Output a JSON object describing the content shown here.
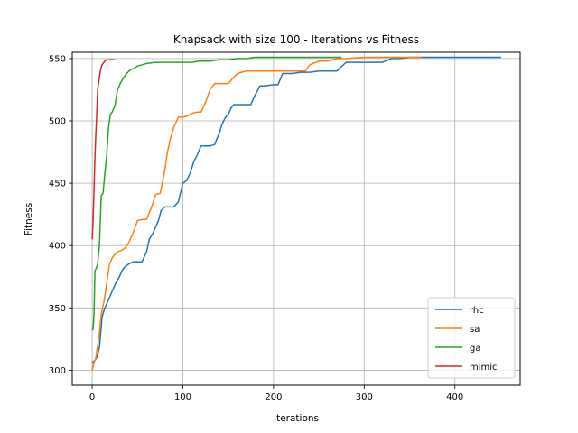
{
  "chart_data": {
    "type": "line",
    "title": "Knapsack with size 100 - Iterations vs Fitness",
    "xlabel": "Iterations",
    "ylabel": "Fitness",
    "xlim": [
      -22,
      472
    ],
    "ylim": [
      288,
      555
    ],
    "xticks": [
      0,
      100,
      200,
      300,
      400
    ],
    "yticks": [
      300,
      350,
      400,
      450,
      500,
      550
    ],
    "grid": true,
    "legend_position": "lower right",
    "series": [
      {
        "name": "rhc",
        "color": "#1f77b4",
        "x": [
          0,
          3,
          5,
          8,
          11,
          14,
          17,
          20,
          23,
          26,
          30,
          33,
          36,
          40,
          45,
          50,
          55,
          60,
          63,
          67,
          70,
          73,
          76,
          80,
          85,
          90,
          95,
          100,
          104,
          108,
          112,
          116,
          120,
          125,
          130,
          135,
          140,
          143,
          147,
          150,
          153,
          156,
          160,
          165,
          170,
          175,
          178,
          180,
          185,
          190,
          200,
          205,
          210,
          220,
          230,
          240,
          250,
          260,
          270,
          280,
          300,
          320,
          330,
          340,
          350,
          360,
          380,
          400,
          420,
          451
        ],
        "y": [
          306,
          308,
          310,
          318,
          343,
          350,
          355,
          360,
          365,
          370,
          375,
          380,
          383,
          385,
          387,
          387,
          387,
          395,
          405,
          410,
          415,
          420,
          428,
          431,
          431,
          431,
          435,
          450,
          452,
          458,
          467,
          473,
          480,
          480,
          480,
          481,
          490,
          497,
          503,
          505,
          510,
          513,
          513,
          513,
          513,
          513,
          518,
          521,
          528,
          528,
          529,
          529,
          538,
          538,
          539,
          539,
          540,
          540,
          540,
          547,
          547,
          547,
          550,
          550,
          551,
          551,
          551,
          551,
          551,
          551
        ]
      },
      {
        "name": "sa",
        "color": "#ff7f0e",
        "x": [
          0,
          2,
          4,
          6,
          8,
          10,
          13,
          16,
          19,
          22,
          25,
          28,
          32,
          36,
          40,
          45,
          50,
          55,
          60,
          65,
          70,
          75,
          80,
          83,
          86,
          90,
          95,
          100,
          105,
          110,
          115,
          120,
          125,
          130,
          135,
          140,
          150,
          160,
          170,
          180,
          200,
          220,
          235,
          240,
          250,
          260,
          270,
          280,
          300,
          320,
          340,
          363
        ],
        "y": [
          300,
          306,
          310,
          320,
          330,
          345,
          355,
          370,
          385,
          390,
          393,
          395,
          396,
          398,
          402,
          410,
          420,
          421,
          421,
          430,
          441,
          442,
          460,
          475,
          485,
          495,
          503,
          503,
          504,
          506,
          507,
          507,
          515,
          525,
          530,
          530,
          530,
          538,
          540,
          540,
          540,
          540,
          540,
          545,
          548,
          548,
          550,
          550,
          551,
          551,
          551,
          551
        ]
      },
      {
        "name": "ga",
        "color": "#2ca02c",
        "x": [
          0,
          1,
          2,
          3,
          4,
          6,
          8,
          10,
          12,
          14,
          16,
          18,
          20,
          22,
          25,
          28,
          31,
          34,
          38,
          42,
          46,
          50,
          55,
          60,
          70,
          80,
          90,
          100,
          110,
          118,
          125,
          130,
          140,
          150,
          160,
          170,
          180,
          200,
          220,
          240,
          260,
          275
        ],
        "y": [
          332,
          333,
          345,
          380,
          381,
          385,
          400,
          440,
          442,
          458,
          473,
          495,
          505,
          507,
          512,
          525,
          530,
          534,
          538,
          541,
          542,
          544,
          545,
          546,
          547,
          547,
          547,
          547,
          547,
          548,
          548,
          548,
          549,
          549,
          550,
          550,
          551,
          551,
          551,
          551,
          551,
          551
        ]
      },
      {
        "name": "mimic",
        "color": "#d62728",
        "x": [
          0,
          1,
          2,
          3,
          4,
          5,
          6,
          7,
          8,
          9,
          10,
          11,
          12,
          13,
          14,
          16,
          18,
          20,
          22,
          25
        ],
        "y": [
          405,
          420,
          445,
          470,
          490,
          505,
          525,
          530,
          535,
          540,
          543,
          545,
          546,
          547,
          548,
          549,
          549,
          549,
          549,
          549
        ]
      }
    ]
  }
}
